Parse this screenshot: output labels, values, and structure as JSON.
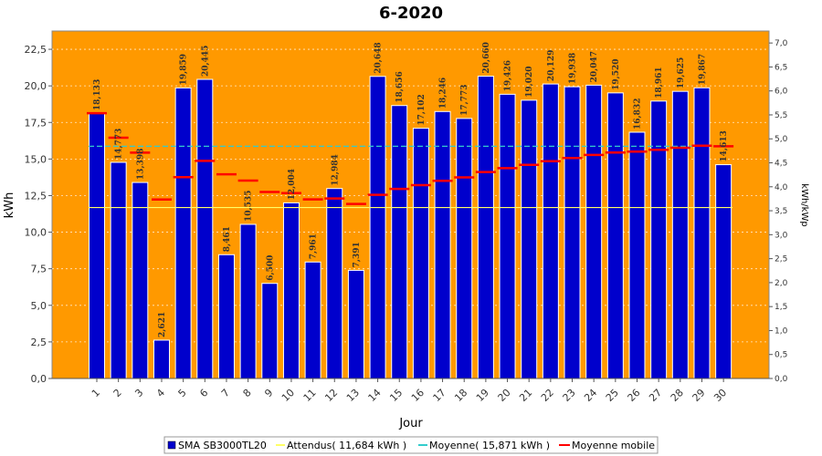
{
  "chart_data": {
    "type": "bar",
    "title": "6-2020",
    "xlabel": "Jour",
    "ylabel": "kWh",
    "y2label": "kWh/kWp",
    "ylim": [
      0,
      23.75
    ],
    "yticks": [
      "0,0",
      "2,5",
      "5,0",
      "7,5",
      "10,0",
      "12,5",
      "15,0",
      "17,5",
      "20,0",
      "22,5"
    ],
    "y2lim": [
      0,
      7.25
    ],
    "y2ticks": [
      "0,0",
      "0,5",
      "1,0",
      "1,5",
      "2,0",
      "2,5",
      "3,0",
      "3,5",
      "4,0",
      "4,5",
      "5,0",
      "5,5",
      "6,0",
      "6,5",
      "7,0"
    ],
    "categories": [
      "1",
      "2",
      "3",
      "4",
      "5",
      "6",
      "7",
      "8",
      "9",
      "10",
      "11",
      "12",
      "13",
      "14",
      "15",
      "16",
      "17",
      "18",
      "19",
      "20",
      "21",
      "22",
      "23",
      "24",
      "25",
      "26",
      "27",
      "28",
      "29",
      "30"
    ],
    "series": [
      {
        "name": "SMA SB3000TL20",
        "values": [
          18.133,
          14.773,
          13.398,
          2.621,
          19.859,
          20.445,
          8.461,
          10.535,
          6.5,
          12.004,
          7.961,
          12.984,
          7.391,
          20.648,
          18.656,
          17.102,
          18.246,
          17.773,
          20.66,
          19.426,
          19.02,
          20.129,
          19.938,
          20.047,
          19.52,
          16.832,
          18.961,
          19.625,
          19.867,
          14.613
        ],
        "labels": [
          "18,133",
          "14,773",
          "13,398",
          "2,621",
          "19,859",
          "20,445",
          "8,461",
          "10,535",
          "6,500",
          "12,004",
          "7,961",
          "12,984",
          "7,391",
          "20,648",
          "18,656",
          "17,102",
          "18,246",
          "17,773",
          "20,660",
          "19,426",
          "19,020",
          "20,129",
          "19,938",
          "20,047",
          "19,520",
          "16,832",
          "18,961",
          "19,625",
          "19,867",
          "14,613"
        ],
        "color": "#0000cc"
      },
      {
        "name": "Attendus",
        "legend": "Attendus( 11,684 kWh )",
        "value": 11.684,
        "color": "#ffff66"
      },
      {
        "name": "Moyenne",
        "legend": "Moyenne( 15,871 kWh )",
        "value": 15.871,
        "color": "#33cccc"
      },
      {
        "name": "Moyenne mobile",
        "values": [
          18.133,
          16.453,
          15.435,
          12.231,
          13.757,
          14.872,
          13.955,
          13.528,
          12.747,
          12.672,
          12.243,
          12.305,
          11.927,
          12.55,
          12.957,
          13.216,
          13.512,
          13.748,
          14.112,
          14.378,
          14.599,
          14.85,
          15.071,
          15.278,
          15.447,
          15.503,
          15.631,
          15.773,
          15.914,
          15.871
        ],
        "color": "#ff0000"
      }
    ],
    "background": "#ff9900",
    "grid": true
  },
  "legend": {
    "items": [
      {
        "label": "SMA SB3000TL20"
      },
      {
        "label": "Attendus( 11,684 kWh )"
      },
      {
        "label": "Moyenne( 15,871 kWh )"
      },
      {
        "label": "Moyenne mobile"
      }
    ]
  }
}
